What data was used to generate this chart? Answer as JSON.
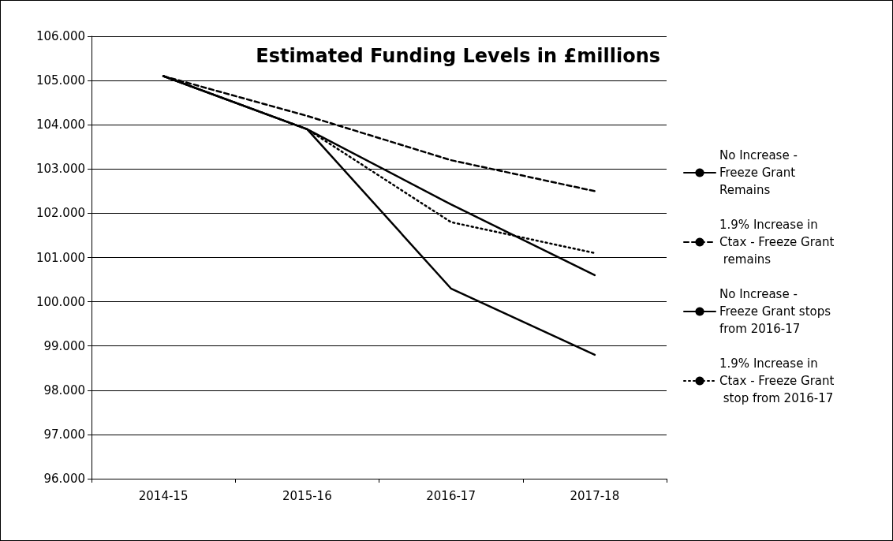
{
  "chart_data": {
    "type": "line",
    "title": "Estimated Funding Levels in £millions",
    "categories": [
      "2014-15",
      "2015-16",
      "2016-17",
      "2017-18"
    ],
    "series": [
      {
        "name": "No Increase - Freeze Grant Remains",
        "color": "#000000",
        "line_style": "solid",
        "values": [
          105.1,
          103.9,
          102.2,
          100.6
        ]
      },
      {
        "name": "1.9% Increase in Ctax - Freeze Grant remains",
        "color": "#000000",
        "line_style": "dashed",
        "values": [
          105.1,
          104.2,
          103.2,
          102.5
        ]
      },
      {
        "name": "No Increase - Freeze Grant stops from 2016-17",
        "color": "#000000",
        "line_style": "solid",
        "values": [
          105.1,
          103.9,
          100.3,
          98.8
        ]
      },
      {
        "name": "1.9% Increase in Ctax - Freeze Grant stop from 2016-17",
        "color": "#000000",
        "line_style": "dotted",
        "values": [
          105.1,
          103.9,
          101.8,
          101.1
        ]
      }
    ],
    "ylim": [
      96,
      106
    ],
    "yticks": [
      {
        "value": 96,
        "label": "96.000"
      },
      {
        "value": 97,
        "label": "97.000"
      },
      {
        "value": 98,
        "label": "98.000"
      },
      {
        "value": 99,
        "label": "99.000"
      },
      {
        "value": 100,
        "label": "100.000"
      },
      {
        "value": 101,
        "label": "101.000"
      },
      {
        "value": 102,
        "label": "102.000"
      },
      {
        "value": 103,
        "label": "103.000"
      },
      {
        "value": 104,
        "label": "104.000"
      },
      {
        "value": 105,
        "label": "105.000"
      },
      {
        "value": 106,
        "label": "106.000"
      }
    ],
    "grid": "y",
    "legend": "right",
    "marker": "none"
  }
}
